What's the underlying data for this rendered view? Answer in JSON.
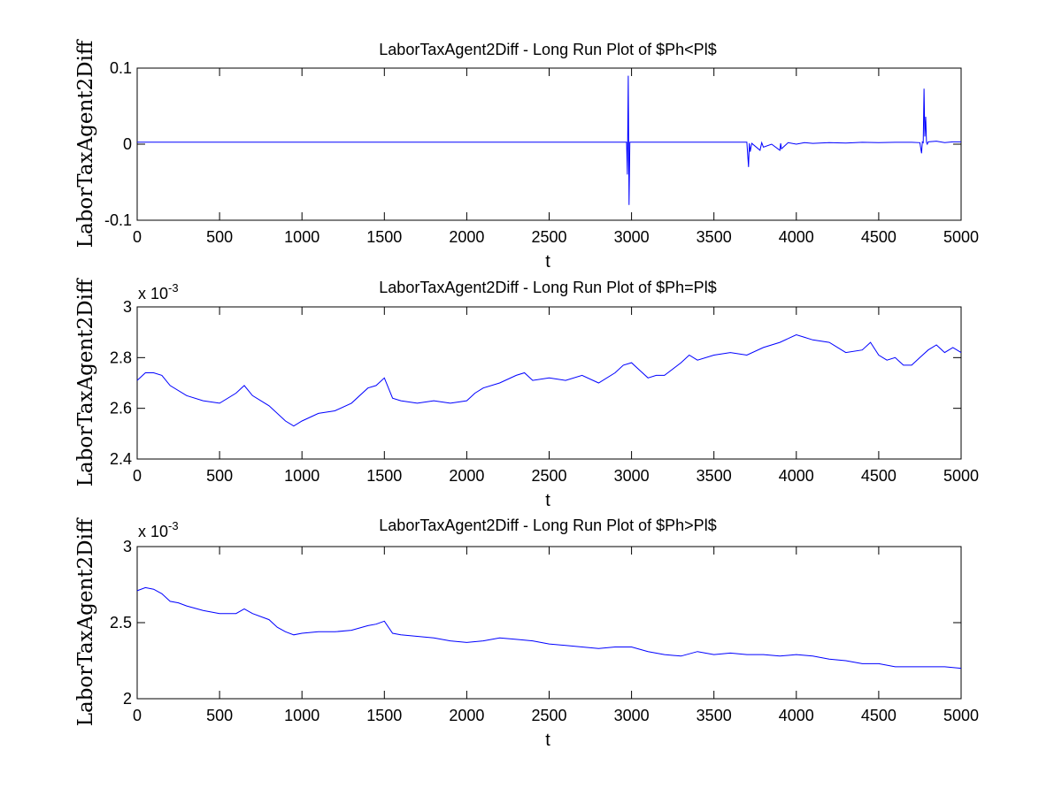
{
  "chart_data": [
    {
      "type": "line",
      "title": "LaborTaxAgent2Diff - Long Run Plot of $Ph<Pl$",
      "xlabel": "t",
      "ylabel": "LaborTaxAgent2Diff",
      "exponent_label": "",
      "xlim": [
        0,
        5000
      ],
      "ylim": [
        -0.1,
        0.1
      ],
      "xticks": [
        0,
        500,
        1000,
        1500,
        2000,
        2500,
        3000,
        3500,
        4000,
        4500,
        5000
      ],
      "yticks": [
        -0.1,
        0,
        0.1
      ],
      "ytick_labels": [
        "-0.1",
        "0",
        "0.1"
      ],
      "grid": false,
      "series_color": "#0000ff",
      "x": [
        0,
        500,
        1000,
        1500,
        2000,
        2500,
        2970,
        2975,
        2980,
        2985,
        2990,
        3000,
        3300,
        3700,
        3710,
        3715,
        3720,
        3725,
        3730,
        3780,
        3790,
        3800,
        3850,
        3900,
        3905,
        3910,
        3950,
        4000,
        4050,
        4100,
        4200,
        4300,
        4400,
        4500,
        4600,
        4700,
        4750,
        4760,
        4765,
        4770,
        4775,
        4780,
        4785,
        4790,
        4795,
        4800,
        4850,
        4900,
        4950,
        5000
      ],
      "y": [
        0.0027,
        0.0027,
        0.0027,
        0.0027,
        0.0027,
        0.0027,
        0.0027,
        -0.04,
        0.09,
        -0.08,
        0.0027,
        0.0027,
        0.0026,
        0.0026,
        -0.03,
        0.001,
        -0.01,
        -0.004,
        0.001,
        -0.008,
        0.002,
        -0.004,
        0.0,
        -0.008,
        0.001,
        -0.006,
        0.002,
        0.0,
        0.002,
        0.001,
        0.002,
        0.0015,
        0.0025,
        0.002,
        0.0025,
        0.0025,
        0.002,
        -0.012,
        0.003,
        0.002,
        0.073,
        0.01,
        0.036,
        0.002,
        0.0,
        0.003,
        0.004,
        0.002,
        0.003,
        0.003
      ]
    },
    {
      "type": "line",
      "title": "LaborTaxAgent2Diff - Long Run Plot of $Ph=Pl$",
      "xlabel": "t",
      "ylabel": "LaborTaxAgent2Diff",
      "exponent_label": "x 10",
      "exponent_power": "-3",
      "xlim": [
        0,
        5000
      ],
      "ylim": [
        2.4,
        3.0
      ],
      "xticks": [
        0,
        500,
        1000,
        1500,
        2000,
        2500,
        3000,
        3500,
        4000,
        4500,
        5000
      ],
      "yticks": [
        2.4,
        2.6,
        2.8,
        3.0
      ],
      "ytick_labels": [
        "2.4",
        "2.6",
        "2.8",
        "3"
      ],
      "grid": false,
      "series_color": "#0000ff",
      "x": [
        0,
        50,
        100,
        150,
        200,
        300,
        400,
        500,
        600,
        650,
        700,
        800,
        900,
        950,
        1000,
        1100,
        1200,
        1300,
        1400,
        1450,
        1500,
        1550,
        1600,
        1700,
        1800,
        1900,
        2000,
        2050,
        2100,
        2200,
        2300,
        2350,
        2400,
        2500,
        2600,
        2700,
        2800,
        2900,
        2950,
        3000,
        3050,
        3100,
        3150,
        3200,
        3300,
        3350,
        3400,
        3500,
        3600,
        3700,
        3800,
        3900,
        4000,
        4050,
        4100,
        4200,
        4300,
        4400,
        4450,
        4500,
        4550,
        4600,
        4650,
        4700,
        4750,
        4800,
        4850,
        4900,
        4950,
        5000
      ],
      "y": [
        2.71,
        2.74,
        2.74,
        2.73,
        2.69,
        2.65,
        2.63,
        2.62,
        2.66,
        2.69,
        2.65,
        2.61,
        2.55,
        2.53,
        2.55,
        2.58,
        2.59,
        2.62,
        2.68,
        2.69,
        2.72,
        2.64,
        2.63,
        2.62,
        2.63,
        2.62,
        2.63,
        2.66,
        2.68,
        2.7,
        2.73,
        2.74,
        2.71,
        2.72,
        2.71,
        2.73,
        2.7,
        2.74,
        2.77,
        2.78,
        2.75,
        2.72,
        2.73,
        2.73,
        2.78,
        2.81,
        2.79,
        2.81,
        2.82,
        2.81,
        2.84,
        2.86,
        2.89,
        2.88,
        2.87,
        2.86,
        2.82,
        2.83,
        2.86,
        2.81,
        2.79,
        2.8,
        2.77,
        2.77,
        2.8,
        2.83,
        2.85,
        2.82,
        2.84,
        2.82
      ]
    },
    {
      "type": "line",
      "title": "LaborTaxAgent2Diff - Long Run Plot of $Ph>Pl$",
      "xlabel": "t",
      "ylabel": "LaborTaxAgent2Diff",
      "exponent_label": "x 10",
      "exponent_power": "-3",
      "xlim": [
        0,
        5000
      ],
      "ylim": [
        2.0,
        3.0
      ],
      "xticks": [
        0,
        500,
        1000,
        1500,
        2000,
        2500,
        3000,
        3500,
        4000,
        4500,
        5000
      ],
      "yticks": [
        2.0,
        2.5,
        3.0
      ],
      "ytick_labels": [
        "2",
        "2.5",
        "3"
      ],
      "grid": false,
      "series_color": "#0000ff",
      "x": [
        0,
        50,
        100,
        150,
        200,
        250,
        300,
        400,
        500,
        600,
        650,
        700,
        800,
        850,
        900,
        950,
        1000,
        1100,
        1200,
        1300,
        1400,
        1450,
        1500,
        1550,
        1600,
        1700,
        1800,
        1900,
        2000,
        2100,
        2200,
        2300,
        2400,
        2500,
        2600,
        2700,
        2800,
        2900,
        3000,
        3100,
        3200,
        3300,
        3400,
        3500,
        3600,
        3700,
        3800,
        3900,
        4000,
        4100,
        4200,
        4300,
        4400,
        4500,
        4600,
        4700,
        4800,
        4900,
        5000
      ],
      "y": [
        2.71,
        2.73,
        2.72,
        2.69,
        2.64,
        2.63,
        2.61,
        2.58,
        2.56,
        2.56,
        2.59,
        2.56,
        2.52,
        2.47,
        2.44,
        2.42,
        2.43,
        2.44,
        2.44,
        2.45,
        2.48,
        2.49,
        2.51,
        2.43,
        2.42,
        2.41,
        2.4,
        2.38,
        2.37,
        2.38,
        2.4,
        2.39,
        2.38,
        2.36,
        2.35,
        2.34,
        2.33,
        2.34,
        2.34,
        2.31,
        2.29,
        2.28,
        2.31,
        2.29,
        2.3,
        2.29,
        2.29,
        2.28,
        2.29,
        2.28,
        2.26,
        2.25,
        2.23,
        2.23,
        2.21,
        2.21,
        2.21,
        2.21,
        2.2
      ]
    }
  ]
}
